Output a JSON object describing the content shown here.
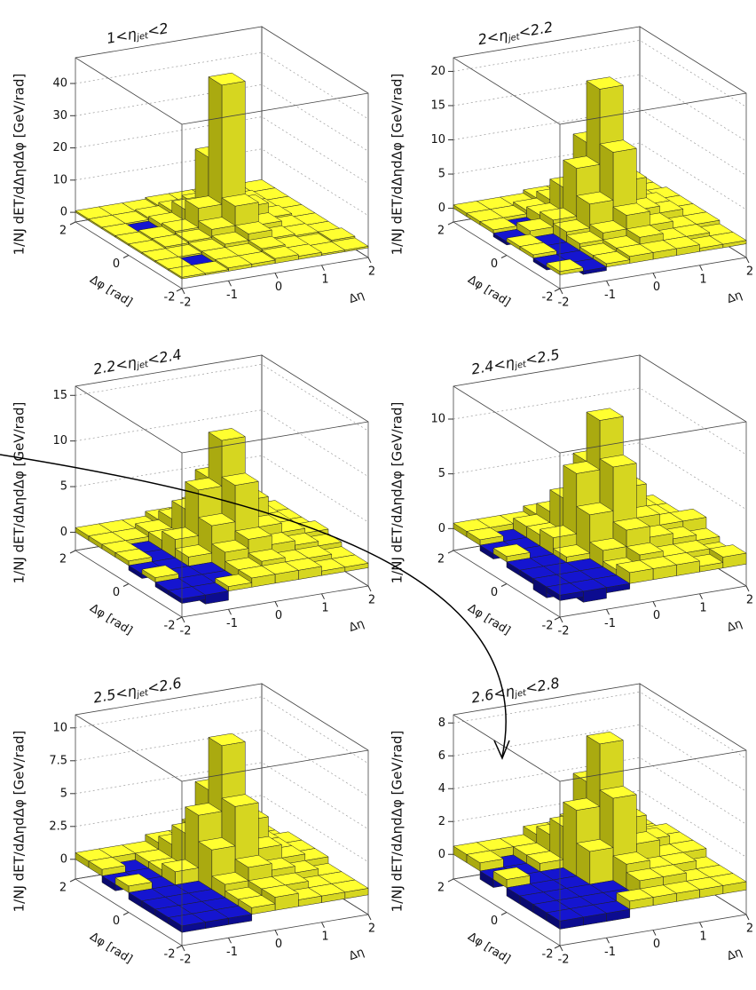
{
  "chart_data": [
    {
      "type": "lego",
      "title": [
        "1<η",
        "jet",
        "<2"
      ],
      "xlabel": "Δη",
      "ylabel": "Δφ [rad]",
      "zlabel": "1/NJ dET/dΔηdΔφ [GeV/rad]",
      "xlim": [
        -2,
        2
      ],
      "ylim": [
        -2,
        2
      ],
      "xticks": [
        -2,
        -1,
        0,
        1,
        2
      ],
      "yticks": [
        -2,
        0,
        2
      ],
      "zlim": [
        -3,
        48
      ],
      "zticks": [
        0,
        10,
        20,
        30,
        40
      ],
      "grid": true,
      "colors": {
        "positive": "#ffff30",
        "negative": "#1515d0"
      },
      "values": [
        [
          0.5,
          0.5,
          1,
          1,
          1.5,
          1,
          0.5,
          0.5
        ],
        [
          0.5,
          -0.5,
          1,
          1,
          2,
          1,
          0.5,
          1
        ],
        [
          0.5,
          0.5,
          1,
          2,
          4,
          1.5,
          1,
          0.5
        ],
        [
          0.5,
          1,
          1.5,
          4,
          10,
          3,
          1,
          0.5
        ],
        [
          0.5,
          1,
          2,
          8,
          45,
          6,
          1.5,
          0.5
        ],
        [
          0.5,
          -0.5,
          1.5,
          5,
          20,
          4,
          1,
          0.5
        ],
        [
          0.5,
          0.5,
          1,
          2,
          3,
          1.5,
          1,
          0.5
        ],
        [
          0.5,
          0.5,
          0.5,
          1,
          1,
          1,
          0.5,
          0.5
        ]
      ]
    },
    {
      "type": "lego",
      "title": [
        "2<η",
        "jet",
        "<2.2"
      ],
      "xlabel": "Δη",
      "ylabel": "Δφ [rad]",
      "zlabel": "1/NJ dET/dΔηdΔφ [GeV/rad]",
      "xlim": [
        -2,
        2
      ],
      "ylim": [
        -2,
        2
      ],
      "xticks": [
        -2,
        -1,
        0,
        1,
        2
      ],
      "yticks": [
        -2,
        0,
        2
      ],
      "zlim": [
        -2,
        22
      ],
      "zticks": [
        0,
        5,
        10,
        15,
        20
      ],
      "grid": true,
      "colors": {
        "positive": "#ffff30",
        "negative": "#1515d0"
      },
      "values": [
        [
          0.5,
          -0.5,
          0.5,
          1,
          1,
          1,
          0.5,
          0.5
        ],
        [
          -0.5,
          -1,
          0.5,
          1,
          2,
          1,
          1,
          0.5
        ],
        [
          0.5,
          -1,
          1,
          2,
          4,
          2,
          1,
          1
        ],
        [
          0.5,
          -0.5,
          1.5,
          5,
          12,
          3,
          2,
          1
        ],
        [
          -0.5,
          1,
          2,
          9,
          20,
          6,
          2,
          1
        ],
        [
          0.5,
          -0.5,
          1.5,
          5,
          11,
          3,
          1.5,
          1
        ],
        [
          0.5,
          0.5,
          1,
          2,
          3,
          2,
          1,
          0.5
        ],
        [
          0.5,
          0.5,
          0.5,
          1,
          1,
          1,
          0.5,
          0.5
        ]
      ]
    },
    {
      "type": "lego",
      "title": [
        "2.2<η",
        "jet",
        "<2.4"
      ],
      "xlabel": "Δη",
      "ylabel": "Δφ [rad]",
      "zlabel": "1/NJ dET/dΔηdΔφ [GeV/rad]",
      "xlim": [
        -2,
        2
      ],
      "ylim": [
        -2,
        2
      ],
      "xticks": [
        -2,
        -1,
        0,
        1,
        2
      ],
      "yticks": [
        -2,
        0,
        2
      ],
      "zlim": [
        -2,
        16
      ],
      "zticks": [
        0,
        5,
        10,
        15
      ],
      "grid": true,
      "colors": {
        "positive": "#ffff30",
        "negative": "#1515d0"
      },
      "values": [
        [
          -0.5,
          -1,
          0.5,
          1,
          1,
          1,
          0.5,
          0.5
        ],
        [
          -0.5,
          -1,
          -0.5,
          1,
          1.5,
          1,
          1,
          0.5
        ],
        [
          0.5,
          -1,
          -1,
          2,
          3,
          2,
          1.5,
          1
        ],
        [
          -0.5,
          -0.5,
          1,
          4,
          8,
          3,
          2,
          1.5
        ],
        [
          0.5,
          -1,
          2,
          7,
          12,
          5,
          2,
          1
        ],
        [
          0.5,
          -0.5,
          1,
          4,
          7,
          3,
          2,
          1
        ],
        [
          0.5,
          0.5,
          1,
          2,
          3,
          2,
          1.5,
          1
        ],
        [
          0.5,
          0.5,
          0.5,
          1,
          1,
          1,
          1,
          0.5
        ]
      ]
    },
    {
      "type": "lego",
      "title": [
        "2.4<η",
        "jet",
        "<2.5"
      ],
      "xlabel": "Δη",
      "ylabel": "Δφ [rad]",
      "zlabel": "1/NJ dET/dΔηdΔφ [GeV/rad]",
      "xlim": [
        -2,
        2
      ],
      "ylim": [
        -2,
        2
      ],
      "xticks": [
        -2,
        -1,
        0,
        1,
        2
      ],
      "yticks": [
        -2,
        0,
        2
      ],
      "zlim": [
        -2,
        13
      ],
      "zticks": [
        0,
        5,
        10
      ],
      "grid": true,
      "colors": {
        "positive": "#ffff30",
        "negative": "#1515d0"
      },
      "values": [
        [
          -0.5,
          -1,
          -0.5,
          1,
          1,
          1,
          0.5,
          1
        ],
        [
          -1,
          -1,
          -0.5,
          0.5,
          1.5,
          1,
          1,
          0.5
        ],
        [
          -0.5,
          -1,
          -1,
          1.5,
          3,
          2,
          1.5,
          1
        ],
        [
          -0.5,
          -1,
          0.5,
          4,
          8,
          3,
          2,
          2
        ],
        [
          0.5,
          -1,
          1.5,
          7,
          11.5,
          5,
          2,
          1
        ],
        [
          -0.5,
          -0.5,
          1,
          4,
          7,
          3,
          2,
          1
        ],
        [
          0.5,
          -0.5,
          1,
          2,
          3,
          2,
          1.5,
          1
        ],
        [
          0.5,
          0.5,
          0.5,
          1,
          1,
          1,
          1,
          0.5
        ]
      ]
    },
    {
      "type": "lego",
      "title": [
        "2.5<η",
        "jet",
        "<2.6"
      ],
      "xlabel": "Δη",
      "ylabel": "Δφ [rad]",
      "zlabel": "1/NJ dET/dΔηdΔφ [GeV/rad]",
      "xlim": [
        -2,
        2
      ],
      "ylim": [
        -2,
        2
      ],
      "xticks": [
        -2,
        -1,
        0,
        1,
        2
      ],
      "yticks": [
        -2,
        0,
        2
      ],
      "zlim": [
        -1.5,
        11
      ],
      "zticks": [
        0,
        2.5,
        5,
        7.5,
        10
      ],
      "grid": true,
      "colors": {
        "positive": "#ffff30",
        "negative": "#1515d0"
      },
      "values": [
        [
          -0.5,
          -0.5,
          -0.5,
          0.5,
          1,
          0.5,
          0.5,
          0.5
        ],
        [
          -0.5,
          -1,
          -1,
          0.5,
          1,
          1,
          0.5,
          0.5
        ],
        [
          -0.5,
          -1,
          -1,
          1,
          2,
          1.5,
          1,
          0.5
        ],
        [
          -0.5,
          -1,
          -0.5,
          3,
          6,
          2.5,
          1.5,
          1
        ],
        [
          0.5,
          -1,
          1,
          5,
          10,
          4,
          1.5,
          1
        ],
        [
          -0.5,
          -1,
          0.5,
          3,
          6,
          2,
          1.5,
          1
        ],
        [
          0.5,
          -0.5,
          0.5,
          1.5,
          2.5,
          1.5,
          1,
          0.5
        ],
        [
          0.5,
          0.5,
          0.5,
          1,
          1,
          1,
          0.5,
          0.5
        ]
      ]
    },
    {
      "type": "lego",
      "title": [
        "2.6<η",
        "jet",
        "<2.8"
      ],
      "xlabel": "Δη",
      "ylabel": "Δφ [rad]",
      "zlabel": "1/NJ dET/dΔηdΔφ [GeV/rad]",
      "xlim": [
        -2,
        2
      ],
      "ylim": [
        -2,
        2
      ],
      "xticks": [
        -2,
        -1,
        0,
        1,
        2
      ],
      "yticks": [
        -2,
        0,
        2
      ],
      "zlim": [
        -1.5,
        8.5
      ],
      "zticks": [
        0,
        2,
        4,
        6,
        8
      ],
      "grid": true,
      "colors": {
        "positive": "#ffff30",
        "negative": "#1515d0"
      },
      "values": [
        [
          -0.5,
          -0.5,
          -0.5,
          0.5,
          0.5,
          0.5,
          0.5,
          0.5
        ],
        [
          -0.5,
          -1,
          -1,
          -0.5,
          1,
          1,
          0.5,
          0.5
        ],
        [
          -0.5,
          -1,
          -1,
          -0.5,
          1.5,
          1,
          1,
          0.5
        ],
        [
          -0.5,
          -1,
          -1,
          2,
          5,
          2,
          1,
          1
        ],
        [
          0.5,
          -1,
          -0.5,
          4,
          7.8,
          3,
          1.5,
          1
        ],
        [
          -0.5,
          -1,
          0.5,
          2.5,
          5,
          2,
          1,
          1
        ],
        [
          0.5,
          -0.5,
          0.5,
          1.5,
          2,
          1.5,
          1,
          0.5
        ],
        [
          0.5,
          0.5,
          0.5,
          1,
          1,
          0.5,
          0.5,
          0.5
        ]
      ]
    }
  ]
}
